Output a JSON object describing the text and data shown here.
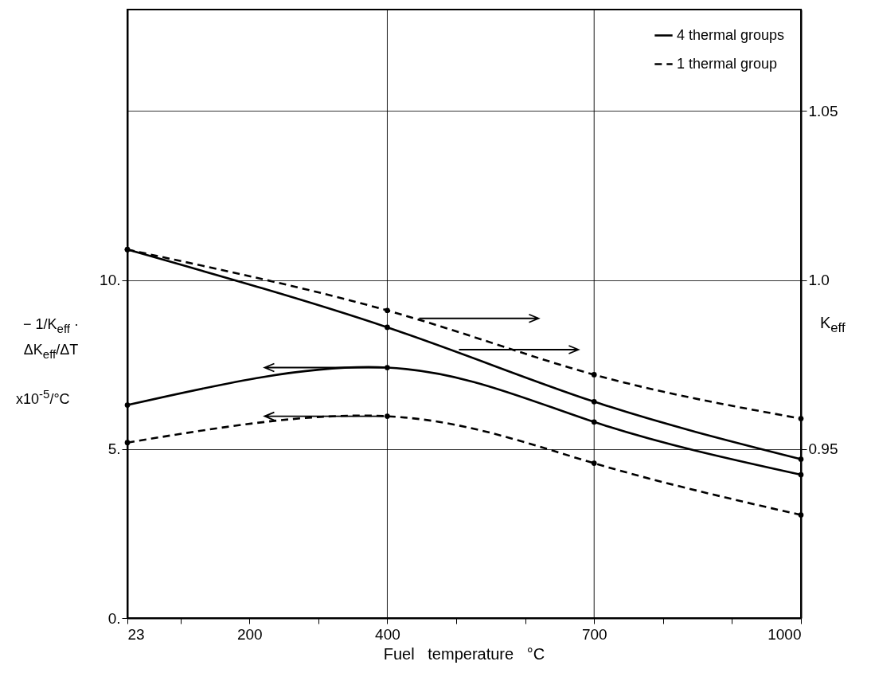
{
  "chart_data": {
    "type": "line",
    "xlabel": "Fuel   temperature   °C",
    "ylabel": "− 1/K$_{eff}$ · ΔK$_{eff}$/ΔT",
    "y2label": "K$_{eff}$",
    "annotations": [
      "x10$^{-5}$/°C"
    ],
    "xlim": [
      23,
      1000
    ],
    "xticks": [
      23,
      {
        "value": 100,
        "label": null
      },
      200,
      {
        "value": 300,
        "label": null
      },
      400,
      {
        "value": 500,
        "label": null
      },
      {
        "value": 600,
        "label": null
      },
      700,
      {
        "value": 800,
        "label": null
      },
      {
        "value": 900,
        "label": null
      },
      1000
    ],
    "ylim": [
      0,
      18
    ],
    "yticks": [
      {
        "value": 0,
        "label": "0."
      },
      {
        "value": 5,
        "label": "5."
      },
      {
        "value": 10,
        "label": "10."
      }
    ],
    "y2lim": [
      0.9,
      1.08
    ],
    "y2ticks": [
      0.95,
      {
        "value": 1,
        "label": "1.0"
      },
      1.05
    ],
    "grid": "y",
    "legend": "top right",
    "marker": "circle",
    "ref_lines": [
      {
        "axis": "x",
        "value": 400
      },
      {
        "axis": "x",
        "value": 700
      }
    ],
    "series": [
      {
        "name": "4 thermal groups",
        "color": "#000000",
        "line_style": "solid",
        "axis": "y2",
        "x": [
          23,
          400,
          700,
          1000
        ],
        "values": [
          1.009,
          0.986,
          0.964,
          0.947
        ]
      },
      {
        "name": "1 thermal group",
        "color": "#000000",
        "line_style": "dashed",
        "axis": "y2",
        "x": [
          23,
          400,
          700,
          1000
        ],
        "values": [
          1.009,
          0.991,
          0.972,
          0.959
        ]
      },
      {
        "color": "#000000",
        "line_style": "solid",
        "x": [
          23,
          400,
          700,
          1000
        ],
        "values": [
          6.3,
          7.41,
          5.8,
          4.24
        ]
      },
      {
        "color": "#000000",
        "line_style": "dashed",
        "x": [
          23,
          400,
          700,
          1000
        ],
        "values": [
          5.19,
          5.97,
          4.58,
          3.05
        ]
      }
    ]
  }
}
